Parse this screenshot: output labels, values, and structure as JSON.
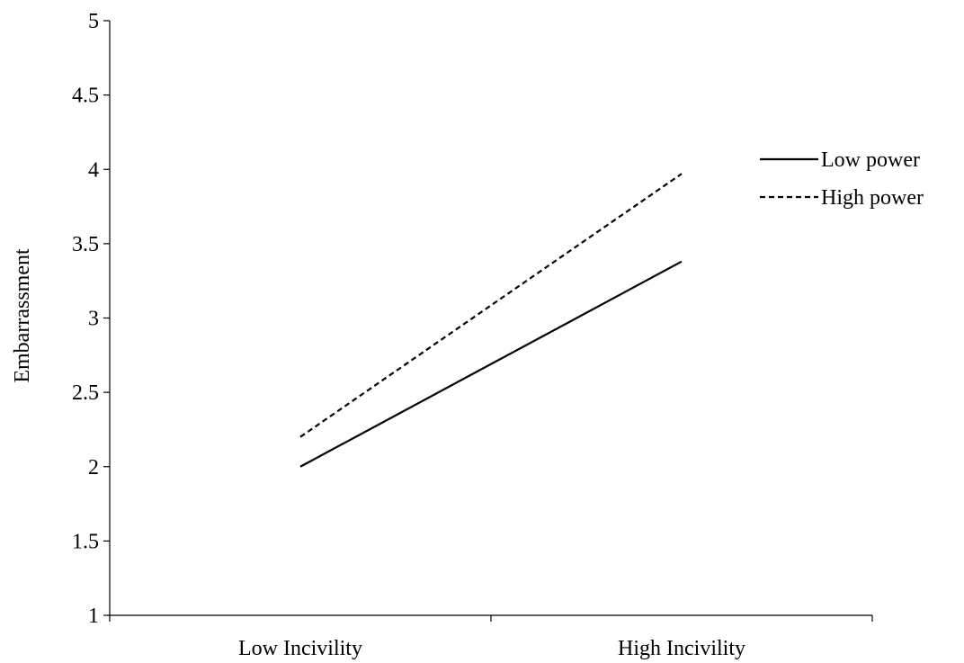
{
  "chart_data": {
    "type": "line",
    "title": "",
    "xlabel": "",
    "ylabel": "Embarrassment",
    "categories": [
      "Low Incivility",
      "High Incivility"
    ],
    "ylim": [
      1,
      5
    ],
    "yticks": [
      1,
      1.5,
      2,
      2.5,
      3,
      3.5,
      4,
      4.5,
      5
    ],
    "ytick_labels": [
      "1",
      "1.5",
      "2",
      "2.5",
      "3",
      "3.5",
      "4",
      "4.5",
      "5"
    ],
    "grid": false,
    "legend_position": "right",
    "series": [
      {
        "name": "Low power",
        "values": [
          2.0,
          3.38
        ],
        "color": "#000000",
        "line_style": "solid"
      },
      {
        "name": "High power",
        "values": [
          2.2,
          3.97
        ],
        "color": "#000000",
        "line_style": "dashed"
      }
    ]
  }
}
